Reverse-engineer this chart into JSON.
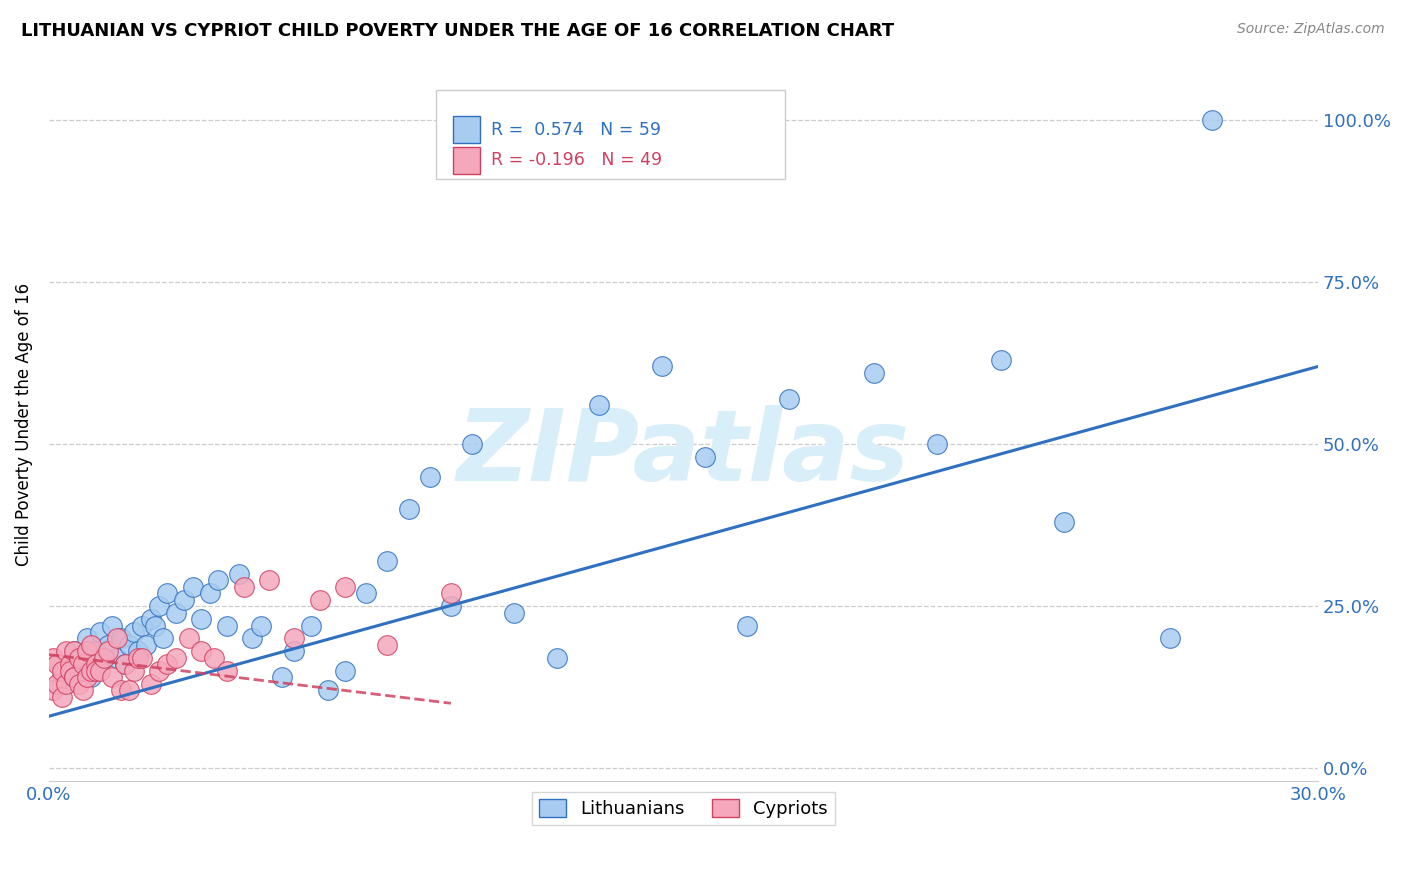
{
  "title": "LITHUANIAN VS CYPRIOT CHILD POVERTY UNDER THE AGE OF 16 CORRELATION CHART",
  "source": "Source: ZipAtlas.com",
  "ylabel": "Child Poverty Under the Age of 16",
  "ytick_labels": [
    "0.0%",
    "25.0%",
    "50.0%",
    "75.0%",
    "100.0%"
  ],
  "ytick_values": [
    0.0,
    0.25,
    0.5,
    0.75,
    1.0
  ],
  "xlim": [
    0.0,
    0.3
  ],
  "ylim": [
    -0.02,
    1.08
  ],
  "blue_R": 0.574,
  "blue_N": 59,
  "pink_R": -0.196,
  "pink_N": 49,
  "blue_color": "#A8CCF0",
  "pink_color": "#F5A8BC",
  "blue_line_color": "#3070C0",
  "pink_line_color": "#D04060",
  "watermark": "ZIPatlas",
  "watermark_color": "#D8EEF8",
  "legend_blue_label": "Lithuanians",
  "legend_pink_label": "Cypriots",
  "blue_line_x0": 0.0,
  "blue_line_y0": 0.08,
  "blue_line_x1": 0.3,
  "blue_line_y1": 0.62,
  "pink_line_x0": 0.0,
  "pink_line_y0": 0.175,
  "pink_line_x1": 0.095,
  "pink_line_y1": 0.1,
  "blue_x": [
    0.003,
    0.005,
    0.006,
    0.007,
    0.008,
    0.009,
    0.01,
    0.011,
    0.012,
    0.013,
    0.014,
    0.015,
    0.016,
    0.017,
    0.018,
    0.019,
    0.02,
    0.021,
    0.022,
    0.023,
    0.024,
    0.025,
    0.026,
    0.027,
    0.028,
    0.03,
    0.032,
    0.034,
    0.036,
    0.038,
    0.04,
    0.042,
    0.045,
    0.048,
    0.05,
    0.055,
    0.058,
    0.062,
    0.066,
    0.07,
    0.075,
    0.08,
    0.085,
    0.09,
    0.095,
    0.1,
    0.11,
    0.12,
    0.13,
    0.145,
    0.155,
    0.165,
    0.175,
    0.195,
    0.21,
    0.225,
    0.24,
    0.265,
    0.275
  ],
  "blue_y": [
    0.14,
    0.16,
    0.18,
    0.15,
    0.17,
    0.2,
    0.14,
    0.18,
    0.21,
    0.17,
    0.19,
    0.22,
    0.17,
    0.2,
    0.16,
    0.19,
    0.21,
    0.18,
    0.22,
    0.19,
    0.23,
    0.22,
    0.25,
    0.2,
    0.27,
    0.24,
    0.26,
    0.28,
    0.23,
    0.27,
    0.29,
    0.22,
    0.3,
    0.2,
    0.22,
    0.14,
    0.18,
    0.22,
    0.12,
    0.15,
    0.27,
    0.32,
    0.4,
    0.45,
    0.25,
    0.5,
    0.24,
    0.17,
    0.56,
    0.62,
    0.48,
    0.22,
    0.57,
    0.61,
    0.5,
    0.63,
    0.38,
    0.2,
    1.0
  ],
  "pink_x": [
    0.001,
    0.001,
    0.002,
    0.002,
    0.003,
    0.003,
    0.004,
    0.004,
    0.005,
    0.005,
    0.006,
    0.006,
    0.006,
    0.007,
    0.007,
    0.008,
    0.008,
    0.009,
    0.009,
    0.01,
    0.01,
    0.011,
    0.011,
    0.012,
    0.013,
    0.014,
    0.015,
    0.016,
    0.017,
    0.018,
    0.019,
    0.02,
    0.021,
    0.022,
    0.024,
    0.026,
    0.028,
    0.03,
    0.033,
    0.036,
    0.039,
    0.042,
    0.046,
    0.052,
    0.058,
    0.064,
    0.07,
    0.08,
    0.095
  ],
  "pink_y": [
    0.12,
    0.17,
    0.13,
    0.16,
    0.15,
    0.11,
    0.13,
    0.18,
    0.16,
    0.15,
    0.14,
    0.18,
    0.14,
    0.17,
    0.13,
    0.16,
    0.12,
    0.14,
    0.18,
    0.15,
    0.19,
    0.16,
    0.15,
    0.15,
    0.17,
    0.18,
    0.14,
    0.2,
    0.12,
    0.16,
    0.12,
    0.15,
    0.17,
    0.17,
    0.13,
    0.15,
    0.16,
    0.17,
    0.2,
    0.18,
    0.17,
    0.15,
    0.28,
    0.29,
    0.2,
    0.26,
    0.28,
    0.19,
    0.27
  ]
}
